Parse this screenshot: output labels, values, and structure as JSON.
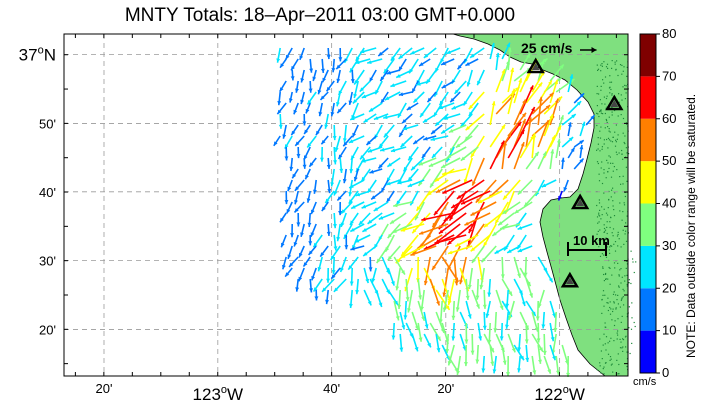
{
  "title": "MNTY Totals: 18–Apr–2011 03:00 GMT+0.000",
  "map": {
    "lat_labels": [
      {
        "text": "37",
        "deg": "o",
        "suffix": "N",
        "lat": 37.0
      },
      {
        "text": "50'",
        "lat": 36.833
      },
      {
        "text": "40'",
        "lat": 36.667
      },
      {
        "text": "30'",
        "lat": 36.5
      },
      {
        "text": "20'",
        "lat": 36.333
      }
    ],
    "lon_labels": [
      {
        "text": "20'",
        "lon": -123.333
      },
      {
        "text": "123",
        "deg": "o",
        "suffix": "W",
        "lon": -123.0
      },
      {
        "text": "40'",
        "lon": -122.667
      },
      {
        "text": "20'",
        "lon": -122.333
      },
      {
        "text": "122",
        "deg": "o",
        "suffix": "W",
        "lon": -122.0
      }
    ],
    "lon_range": [
      -123.45,
      -121.8
    ],
    "lat_range": [
      36.22,
      37.05
    ],
    "scale_arrow_label": "25 cm/s",
    "scale_arrow_speed": 25,
    "distance_scale_label": "10 km",
    "stations": [
      {
        "lon": -122.07,
        "lat": 36.97
      },
      {
        "lon": -121.84,
        "lat": 36.88
      },
      {
        "lon": -121.94,
        "lat": 36.64
      },
      {
        "lon": -121.97,
        "lat": 36.45
      }
    ],
    "colors": {
      "land": "#7fe07f",
      "coast_speckle": "#1f8a3a",
      "grid": "#9a9a9a"
    }
  },
  "colorbar": {
    "ticks": [
      "80",
      "70",
      "60",
      "50",
      "40",
      "30",
      "20",
      "10",
      "0"
    ],
    "colors": [
      "#0000ff",
      "#0078ff",
      "#00e5ff",
      "#7fff7f",
      "#ffff00",
      "#ff7f00",
      "#ff0000",
      "#7f0000"
    ],
    "min": 0,
    "max": 80,
    "unit": "cm/s",
    "note": "NOTE: Data outside color range will be saturated."
  }
}
